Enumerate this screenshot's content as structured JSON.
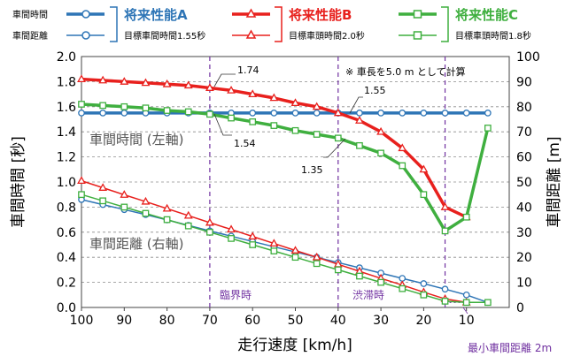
{
  "legend": {
    "row1_label": "車間時間",
    "row2_label": "車間距離",
    "groups": [
      {
        "title": "将来性能A",
        "sub": "目標車間時間1.55秒",
        "color": "#2e75b6"
      },
      {
        "title": "将来性能B",
        "sub": "目標車頭時間2.0秒",
        "color": "#e8201d"
      },
      {
        "title": "将来性能C",
        "sub": "目標車頭時間1.8秒",
        "color": "#3faf3f"
      }
    ]
  },
  "labels": {
    "inner_time": "車間時間 (左軸)",
    "inner_dist": "車間距離 (右軸)",
    "note": "※ 車長を5.0 m として計算",
    "critical": "臨界時",
    "congestion": "渋滞時",
    "min_distance": "最小車間距離 2m",
    "annot_174": "1.74",
    "annot_155": "1.55",
    "annot_154": "1.54",
    "annot_135": "1.35"
  },
  "chart_data": {
    "type": "line",
    "xlabel": "走行速度 [km/h]",
    "ylabel": "車間時間 [秒]",
    "y2label": "車間距離 [m]",
    "xlim": [
      100,
      0
    ],
    "ylim": [
      0,
      2.0
    ],
    "y2lim": [
      0,
      100
    ],
    "x_ticks": [
      100,
      90,
      80,
      70,
      60,
      50,
      40,
      30,
      20,
      10
    ],
    "y_ticks": [
      "0.0",
      "0.2",
      "0.4",
      "0.6",
      "0.8",
      "1.0",
      "1.2",
      "1.4",
      "1.6",
      "1.8",
      "2.0"
    ],
    "y2_ticks": [
      "0",
      "10",
      "20",
      "30",
      "40",
      "50",
      "60",
      "70",
      "80",
      "90",
      "100"
    ],
    "x": [
      100,
      95,
      90,
      85,
      80,
      75,
      70,
      65,
      60,
      55,
      50,
      45,
      40,
      35,
      30,
      25,
      20,
      15,
      10,
      5
    ],
    "series": [
      {
        "name": "将来性能A",
        "kind": "time",
        "axis": "left",
        "color": "#2e75b6",
        "marker": "circle",
        "values": [
          1.55,
          1.55,
          1.55,
          1.55,
          1.55,
          1.55,
          1.55,
          1.55,
          1.55,
          1.55,
          1.55,
          1.55,
          1.55,
          1.55,
          1.55,
          1.55,
          1.55,
          1.55,
          1.55,
          1.55
        ]
      },
      {
        "name": "将来性能B",
        "kind": "time",
        "axis": "left",
        "color": "#e8201d",
        "marker": "triangle",
        "values": [
          1.82,
          1.81,
          1.8,
          1.79,
          1.78,
          1.77,
          1.75,
          1.73,
          1.7,
          1.67,
          1.63,
          1.6,
          1.55,
          1.49,
          1.4,
          1.27,
          1.1,
          0.8,
          0.72,
          null
        ]
      },
      {
        "name": "将来性能C",
        "kind": "time",
        "axis": "left",
        "color": "#3faf3f",
        "marker": "square",
        "values": [
          1.62,
          1.61,
          1.6,
          1.59,
          1.57,
          1.56,
          1.54,
          1.51,
          1.48,
          1.45,
          1.41,
          1.38,
          1.35,
          1.29,
          1.23,
          1.13,
          0.9,
          0.61,
          0.72,
          1.43
        ]
      },
      {
        "name": "将来性能A",
        "kind": "distance",
        "axis": "right",
        "color": "#2e75b6",
        "marker": "circle",
        "values": [
          43.0,
          41.0,
          39.0,
          37.0,
          34.9,
          32.7,
          30.5,
          28.4,
          26.3,
          24.2,
          22.1,
          20.0,
          17.9,
          15.8,
          13.7,
          11.6,
          9.5,
          7.3,
          5.0,
          2.0
        ]
      },
      {
        "name": "将来性能B",
        "kind": "distance",
        "axis": "right",
        "color": "#e8201d",
        "marker": "triangle",
        "values": [
          50.5,
          47.7,
          44.9,
          42.2,
          39.4,
          36.6,
          33.8,
          31.1,
          28.3,
          25.5,
          22.7,
          20.0,
          17.2,
          14.4,
          11.6,
          8.9,
          6.1,
          3.4,
          2.0,
          null
        ]
      },
      {
        "name": "将来性能C",
        "kind": "distance",
        "axis": "right",
        "color": "#3faf3f",
        "marker": "square",
        "values": [
          45.0,
          42.5,
          40.0,
          37.5,
          35.0,
          32.5,
          30.0,
          27.5,
          25.0,
          22.5,
          20.0,
          17.5,
          15.0,
          12.5,
          10.0,
          7.5,
          5.0,
          2.5,
          2.0,
          2.0
        ]
      }
    ],
    "vlines": [
      70,
      40,
      15
    ],
    "grid": true
  }
}
